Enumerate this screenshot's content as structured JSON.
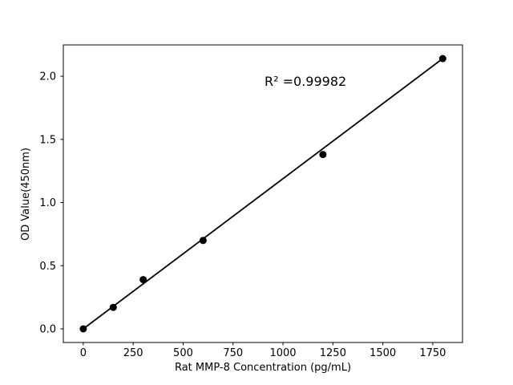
{
  "chart_data": {
    "type": "scatter",
    "title": "",
    "xlabel": "Rat MMP-8 Concentration (pg/mL)",
    "ylabel": "OD Value(450nm)",
    "annotation": "R² =0.99982",
    "r_squared": 0.99982,
    "x": [
      0,
      150,
      300,
      600,
      1200,
      1800
    ],
    "y": [
      0.0,
      0.17,
      0.39,
      0.7,
      1.38,
      2.14
    ],
    "trendline_x": [
      0,
      1800
    ],
    "trendline_y": [
      0.0,
      2.14
    ],
    "xticks": [
      0,
      250,
      500,
      750,
      1000,
      1250,
      1500,
      1750
    ],
    "xtick_labels": [
      "0",
      "250",
      "500",
      "750",
      "1000",
      "1250",
      "1500",
      "1750"
    ],
    "yticks": [
      0.0,
      0.5,
      1.0,
      1.5,
      2.0
    ],
    "ytick_labels": [
      "0.0",
      "0.5",
      "1.0",
      "1.5",
      "2.0"
    ],
    "xlim": [
      -100,
      1899
    ],
    "ylim": [
      -0.108,
      2.248
    ],
    "grid": false,
    "legend": "none",
    "colors": {
      "marker": "#000000",
      "line": "#000000",
      "axis": "#000000",
      "text": "#000000",
      "background": "#ffffff"
    }
  }
}
